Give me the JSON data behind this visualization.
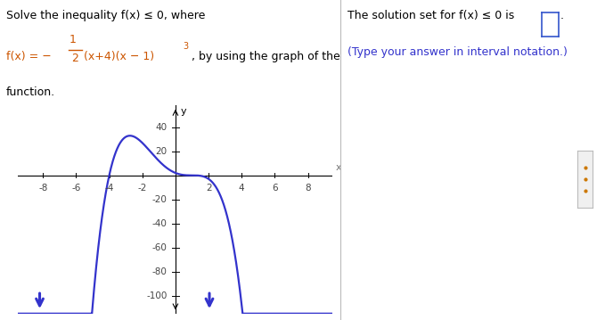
{
  "curve_color": "#3333cc",
  "axis_color": "#000000",
  "x_ticks": [
    -8,
    -6,
    -4,
    -2,
    2,
    4,
    6,
    8
  ],
  "y_ticks": [
    -100,
    -80,
    -60,
    -40,
    -20,
    20,
    40
  ],
  "xlim": [
    -9.5,
    9.5
  ],
  "ylim": [
    -115,
    58
  ],
  "right_text1": "The solution set for f(x) ≤ 0 is",
  "right_text2": "(Type your answer in interval notation.)"
}
